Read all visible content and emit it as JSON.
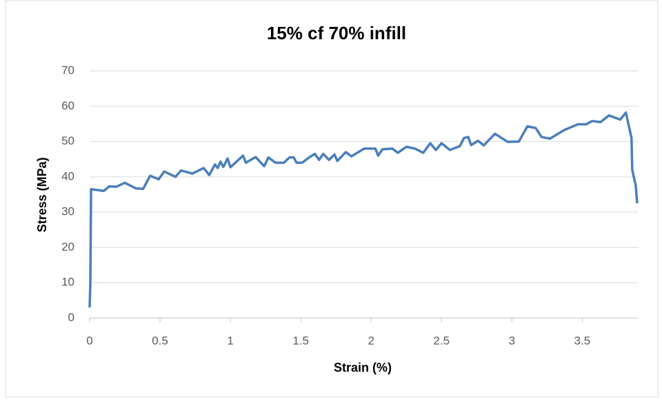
{
  "chart_data": {
    "type": "line",
    "title": "15% cf 70% infill",
    "x_label": "Strain (%)",
    "y_label": "Stress (MPa)",
    "xlim": [
      0,
      3.9
    ],
    "xticks": [
      0,
      0.5,
      1,
      1.5,
      2,
      2.5,
      3,
      3.5
    ],
    "ylim": [
      0,
      70
    ],
    "yticks": [
      0,
      10,
      20,
      30,
      40,
      50,
      60,
      70
    ],
    "grid": true,
    "series": [
      {
        "name": "15% cf 70% infill",
        "color": "#4a7ebb",
        "x": [
          0,
          0.005,
          0.01,
          0.05,
          0.1,
          0.14,
          0.19,
          0.25,
          0.33,
          0.38,
          0.43,
          0.49,
          0.53,
          0.61,
          0.65,
          0.73,
          0.81,
          0.85,
          0.89,
          0.91,
          0.93,
          0.95,
          0.98,
          1.0,
          1.09,
          1.11,
          1.18,
          1.24,
          1.27,
          1.32,
          1.38,
          1.42,
          1.45,
          1.47,
          1.51,
          1.56,
          1.6,
          1.63,
          1.66,
          1.7,
          1.74,
          1.76,
          1.82,
          1.86,
          1.95,
          2.03,
          2.05,
          2.08,
          2.15,
          2.19,
          2.25,
          2.31,
          2.37,
          2.42,
          2.46,
          2.5,
          2.56,
          2.63,
          2.66,
          2.69,
          2.71,
          2.76,
          2.8,
          2.88,
          2.97,
          3.05,
          3.11,
          3.17,
          3.21,
          3.27,
          3.37,
          3.47,
          3.53,
          3.57,
          3.63,
          3.69,
          3.77,
          3.81,
          3.85,
          3.855,
          3.88,
          3.89
        ],
        "values": [
          3,
          10,
          36.5,
          36.3,
          36,
          37.3,
          37.2,
          38.3,
          36.7,
          36.6,
          40.3,
          39.3,
          41.5,
          40,
          41.8,
          40.9,
          42.5,
          40.5,
          43.5,
          42.5,
          44.3,
          42.8,
          45.2,
          42.7,
          46,
          44,
          45.6,
          43,
          45.5,
          44,
          44,
          45.5,
          45.5,
          44,
          44,
          45.5,
          46.5,
          44.8,
          46.5,
          44.8,
          46.3,
          44.5,
          47,
          45.8,
          48,
          48,
          46,
          47.8,
          48,
          46.8,
          48.5,
          48,
          46.8,
          49.5,
          47.6,
          49.5,
          47.6,
          48.7,
          51,
          51.3,
          49,
          50.2,
          48.9,
          52.2,
          49.9,
          50,
          54.3,
          53.8,
          51.3,
          50.8,
          53.2,
          54.9,
          54.9,
          55.8,
          55.5,
          57.4,
          56.2,
          58.2,
          51,
          42,
          37.5,
          32.5
        ]
      }
    ]
  }
}
